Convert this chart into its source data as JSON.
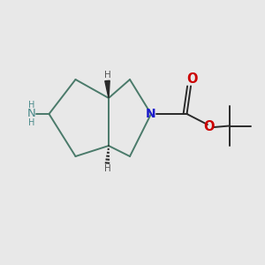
{
  "background_color": "#e8e8e8",
  "bond_color": "#4a7a6a",
  "nitrogen_color": "#1a1acc",
  "oxygen_color": "#cc0000",
  "amine_color": "#4a8a8a",
  "dark_color": "#2a2a2a",
  "figsize": [
    3.0,
    3.0
  ],
  "dpi": 100,
  "xlim": [
    0,
    10
  ],
  "ylim": [
    0,
    10
  ]
}
